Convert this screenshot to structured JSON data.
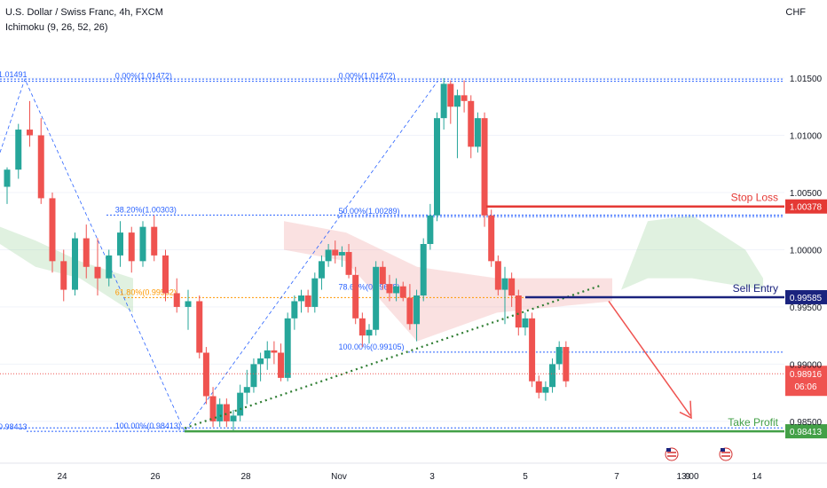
{
  "header": {
    "title": "U.S. Dollar / Swiss Franc, 4h, FXCM",
    "indicator": "Ichimoku (9, 26, 52, 26)"
  },
  "axis_currency": "CHF",
  "colors": {
    "up": "#26a69a",
    "down": "#ef5350",
    "stop": "#e53935",
    "entry": "#1a237e",
    "profit": "#43a047",
    "fib": "#2962ff",
    "fib_orange": "#ff9800",
    "trend": "#2e7d32"
  },
  "chart_data": {
    "type": "candlestick",
    "title": "U.S. Dollar / Swiss Franc, 4h, FXCM",
    "y_ticks": [
      "1.01500",
      "1.01000",
      "1.00500",
      "1.00000",
      "0.99500",
      "0.99000",
      "0.98500"
    ],
    "y_tick_values": [
      1.015,
      1.01,
      1.005,
      1.0,
      0.995,
      0.99,
      0.985
    ],
    "ylim": [
      0.9815,
      1.0195
    ],
    "x_ticks": [
      "24",
      "26",
      "28",
      "Nov",
      "3",
      "5",
      "7",
      "9",
      "13:00",
      "14"
    ],
    "x_tick_index": [
      7,
      28,
      49,
      70,
      91,
      112,
      133,
      154,
      172,
      188
    ],
    "x_count": 190,
    "candles": [
      [
        1.0055,
        1.0072,
        1.004,
        1.007
      ],
      [
        1.007,
        1.011,
        1.0062,
        1.0105
      ],
      [
        1.0105,
        1.013,
        1.009,
        1.01
      ],
      [
        1.01,
        1.0115,
        1.004,
        1.0045
      ],
      [
        1.0045,
        1.005,
        0.998,
        0.999
      ],
      [
        0.999,
        1.0,
        0.9955,
        0.9965
      ],
      [
        0.9965,
        1.0015,
        0.996,
        1.001
      ],
      [
        1.001,
        1.0022,
        0.9975,
        0.9985
      ],
      [
        0.9985,
        1.001,
        0.996,
        0.9975
      ],
      [
        0.9975,
        1.0,
        0.9968,
        0.9995
      ],
      [
        0.9995,
        1.0025,
        0.9985,
        1.0015
      ],
      [
        1.0015,
        1.002,
        0.998,
        0.999
      ],
      [
        0.999,
        1.0025,
        0.9985,
        1.002
      ],
      [
        1.002,
        1.003,
        0.999,
        0.9995
      ],
      [
        0.9995,
        1.0,
        0.9955,
        0.9962
      ],
      [
        0.9962,
        0.9975,
        0.9945,
        0.995
      ],
      [
        0.995,
        0.9965,
        0.993,
        0.9955
      ],
      [
        0.9955,
        0.996,
        0.9905,
        0.991
      ],
      [
        0.991,
        0.9915,
        0.9865,
        0.9872
      ],
      [
        0.9872,
        0.988,
        0.9845,
        0.985
      ],
      [
        0.985,
        0.987,
        0.9845,
        0.9865
      ],
      [
        0.9865,
        0.987,
        0.9845,
        0.985
      ],
      [
        0.985,
        0.986,
        0.9841,
        0.9855
      ],
      [
        0.9855,
        0.9882,
        0.985,
        0.9875
      ],
      [
        0.9875,
        0.9895,
        0.9865,
        0.988
      ],
      [
        0.988,
        0.9905,
        0.9875,
        0.99
      ],
      [
        0.99,
        0.991,
        0.9885,
        0.9905
      ],
      [
        0.9905,
        0.992,
        0.9895,
        0.9912
      ],
      [
        0.9912,
        0.992,
        0.99,
        0.991
      ],
      [
        0.991,
        0.9918,
        0.9885,
        0.9888
      ],
      [
        0.9888,
        0.9945,
        0.9885,
        0.994
      ],
      [
        0.994,
        0.996,
        0.993,
        0.9955
      ],
      [
        0.9955,
        0.9965,
        0.9945,
        0.996
      ],
      [
        0.996,
        0.9965,
        0.9945,
        0.995
      ],
      [
        0.995,
        0.998,
        0.9945,
        0.9975
      ],
      [
        0.9975,
        0.9995,
        0.9965,
        0.999
      ],
      [
        0.999,
        1.0005,
        0.9985,
        1.0
      ],
      [
        1.0,
        1.0008,
        0.9988,
        0.9995
      ],
      [
        0.9995,
        1.0003,
        0.9985,
        0.9998
      ],
      [
        0.9998,
        1.0005,
        0.9975,
        0.9978
      ],
      [
        0.9978,
        0.9985,
        0.9935,
        0.994
      ],
      [
        0.994,
        0.9945,
        0.9915,
        0.9925
      ],
      [
        0.9925,
        0.9935,
        0.9918,
        0.993
      ],
      [
        0.993,
        0.999,
        0.9925,
        0.9985
      ],
      [
        0.9985,
        0.999,
        0.9965,
        0.997
      ],
      [
        0.997,
        0.9978,
        0.9955,
        0.9962
      ],
      [
        0.9962,
        0.9975,
        0.9955,
        0.9968
      ],
      [
        0.9968,
        0.9972,
        0.9955,
        0.9958
      ],
      [
        0.9958,
        0.997,
        0.993,
        0.9935
      ],
      [
        0.9935,
        0.9965,
        0.992,
        0.996
      ],
      [
        0.996,
        1.001,
        0.9955,
        1.0005
      ],
      [
        1.0005,
        1.004,
        1.0,
        1.003
      ],
      [
        1.003,
        1.012,
        1.0025,
        1.0115
      ],
      [
        1.0115,
        1.015,
        1.0105,
        1.0145
      ],
      [
        1.0145,
        1.0148,
        1.011,
        1.0125
      ],
      [
        1.0125,
        1.014,
        1.008,
        1.0135
      ],
      [
        1.0135,
        1.0148,
        1.012,
        1.013
      ],
      [
        1.013,
        1.0135,
        1.008,
        1.009
      ],
      [
        1.009,
        1.012,
        1.0085,
        1.0115
      ],
      [
        1.0115,
        1.012,
        1.002,
        1.003
      ],
      [
        1.003,
        1.0035,
        0.9985,
        0.999
      ],
      [
        0.999,
        0.9995,
        0.996,
        0.9965
      ],
      [
        0.9965,
        0.9985,
        0.9935,
        0.9975
      ],
      [
        0.9975,
        0.998,
        0.995,
        0.996
      ],
      [
        0.996,
        0.9965,
        0.9925,
        0.9932
      ],
      [
        0.9932,
        0.9945,
        0.9925,
        0.994
      ],
      [
        0.994,
        0.9945,
        0.988,
        0.9885
      ],
      [
        0.9885,
        0.989,
        0.987,
        0.9875
      ],
      [
        0.9875,
        0.9885,
        0.9868,
        0.988
      ],
      [
        0.988,
        0.9905,
        0.9875,
        0.99
      ],
      [
        0.99,
        0.992,
        0.9895,
        0.9915
      ],
      [
        0.9915,
        0.992,
        0.988,
        0.9885
      ]
    ],
    "candle_x": [
      0,
      5,
      10,
      15,
      20,
      25,
      30,
      35,
      40,
      45,
      50,
      55,
      60,
      65,
      70,
      75,
      80,
      85,
      88,
      91,
      94,
      97,
      100,
      103,
      106,
      109,
      112,
      115,
      118,
      121,
      124,
      127,
      130,
      133,
      136,
      139,
      142,
      145,
      148,
      151,
      154,
      157,
      160,
      163,
      166,
      169,
      172,
      175,
      178,
      181,
      184,
      187,
      190,
      193,
      196,
      199,
      202,
      205,
      208,
      211,
      214,
      217,
      220,
      223,
      226,
      229,
      232,
      235,
      238,
      241,
      244,
      247
    ],
    "levels": [
      {
        "name": "stop-loss",
        "label": "Stop Loss",
        "value": 1.00378,
        "price_label": "1.00378"
      },
      {
        "name": "sell-entry",
        "label": "Sell Entry",
        "value": 0.99585,
        "price_label": "0.99585"
      },
      {
        "name": "take-profit",
        "label": "Take Profit",
        "value": 0.98413,
        "price_label": "0.98413"
      }
    ],
    "current_price": {
      "value": 0.98916,
      "label": "0.98916",
      "countdown": "06:06"
    },
    "fib_labels": [
      {
        "text": "0.00%(1.01472)",
        "value": 1.01472,
        "x": 0.15
      },
      {
        "text": "0.00%(1.01472)",
        "value": 1.01472,
        "x": 0.42
      },
      {
        "text": "38.20%(1.00303)",
        "value": 1.00303,
        "x": 0.15
      },
      {
        "text": "50.00%(1.00289)",
        "value": 1.00289,
        "x": 0.42
      },
      {
        "text": "61.80%(0.99582)",
        "value": 0.99582,
        "x": 0.15
      },
      {
        "text": "78.60%(0.99628)",
        "value": 0.99628,
        "x": 0.42
      },
      {
        "text": "100.00%(0.99105)",
        "value": 0.99105,
        "x": 0.42
      },
      {
        "text": "100.00%(0.98413)",
        "value": 0.98413,
        "x": 0.15
      }
    ],
    "left_labels": [
      {
        "text": "1.01491",
        "value": 1.01491
      },
      {
        "text": "0.98413",
        "value": 0.98413
      }
    ]
  }
}
